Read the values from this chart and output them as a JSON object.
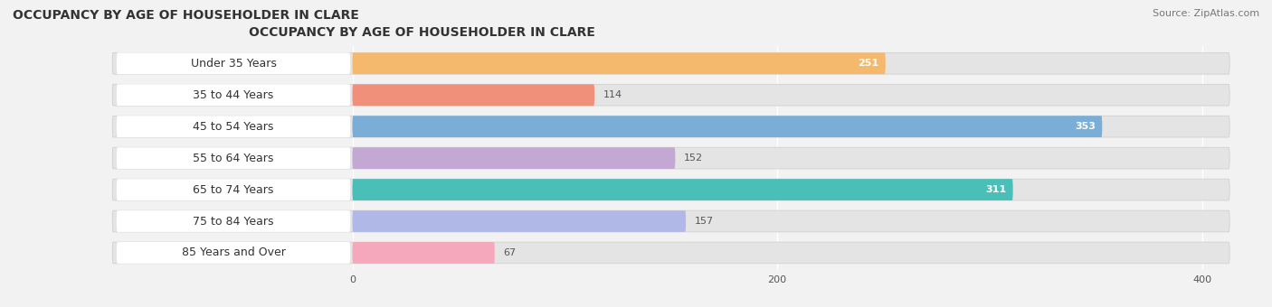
{
  "title": "OCCUPANCY BY AGE OF HOUSEHOLDER IN CLARE",
  "source": "Source: ZipAtlas.com",
  "categories": [
    "Under 35 Years",
    "35 to 44 Years",
    "45 to 54 Years",
    "55 to 64 Years",
    "65 to 74 Years",
    "75 to 84 Years",
    "85 Years and Over"
  ],
  "values": [
    251,
    114,
    353,
    152,
    311,
    157,
    67
  ],
  "bar_colors": [
    "#f5b96e",
    "#f0907a",
    "#7aaed6",
    "#c4a8d4",
    "#4abfb8",
    "#b0b8e8",
    "#f5a8bc"
  ],
  "max_val": 400,
  "xticks": [
    0,
    200,
    400
  ],
  "bg_color": "#f2f2f2",
  "bar_bg_color": "#e4e4e4",
  "white_label_bg": "#ffffff",
  "title_fontsize": 10,
  "label_fontsize": 9,
  "value_fontsize": 8,
  "source_fontsize": 8
}
